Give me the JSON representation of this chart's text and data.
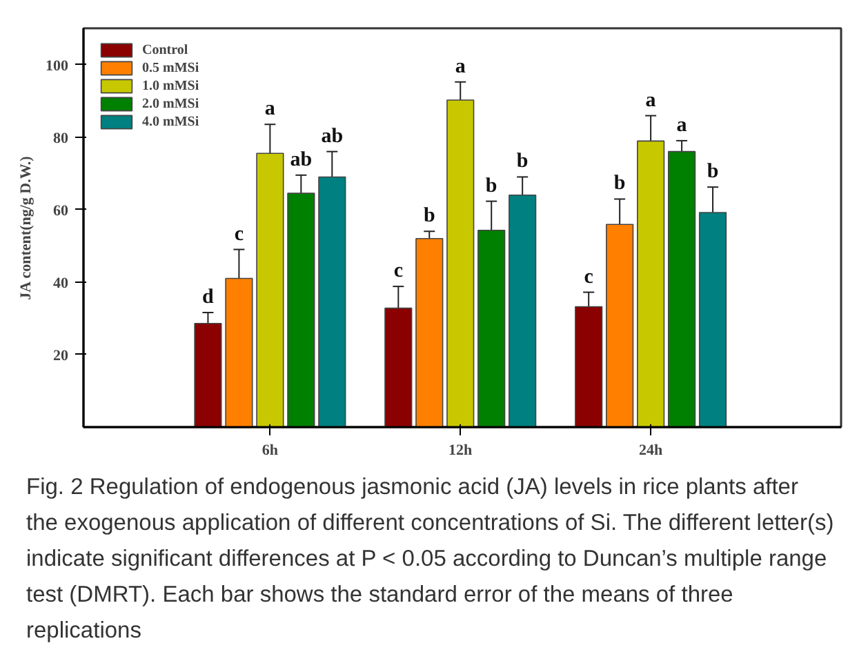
{
  "chart_data": {
    "type": "bar",
    "categories": [
      "6h",
      "12h",
      "24h"
    ],
    "ylabel": "JA content(ng/g D.W.)",
    "ylim": [
      0,
      110
    ],
    "yticks": [
      20,
      40,
      60,
      80,
      100
    ],
    "legend": "top left",
    "grid": false,
    "series": [
      {
        "name": "Control",
        "color": "#8b0000",
        "values": [
          28.6,
          32.8,
          33.2
        ],
        "errors": [
          3,
          6,
          4
        ]
      },
      {
        "name": "0.5 mMSi",
        "color": "#ff8000",
        "values": [
          41,
          52,
          55.9
        ],
        "errors": [
          8,
          2,
          7
        ]
      },
      {
        "name": "1.0 mMSi",
        "color": "#c8c800",
        "values": [
          75.5,
          90.2,
          78.9
        ],
        "errors": [
          8,
          5,
          7
        ]
      },
      {
        "name": "2.0 mMSi",
        "color": "#008000",
        "values": [
          64.5,
          54.3,
          76
        ],
        "errors": [
          5,
          8,
          3
        ]
      },
      {
        "name": "4.0 mMSi",
        "color": "#008080",
        "values": [
          69,
          64,
          59.2
        ],
        "errors": [
          7,
          5,
          7
        ]
      }
    ],
    "annotations": [
      "d",
      "c",
      "a",
      "ab",
      "ab",
      "c",
      "b",
      "a",
      "b",
      "b",
      "c",
      "b",
      "a",
      "a",
      "b",
      "Fig. 2 Regulation of endogenous jasmonic acid (JA) levels in rice plants after the exogenous application of different concentrations of Si. The different letter(s) indicate significant differences at P < 0.05 according to Duncan’s multiple range test (DMRT). Each bar shows the standard error of the means of three replications"
    ]
  }
}
